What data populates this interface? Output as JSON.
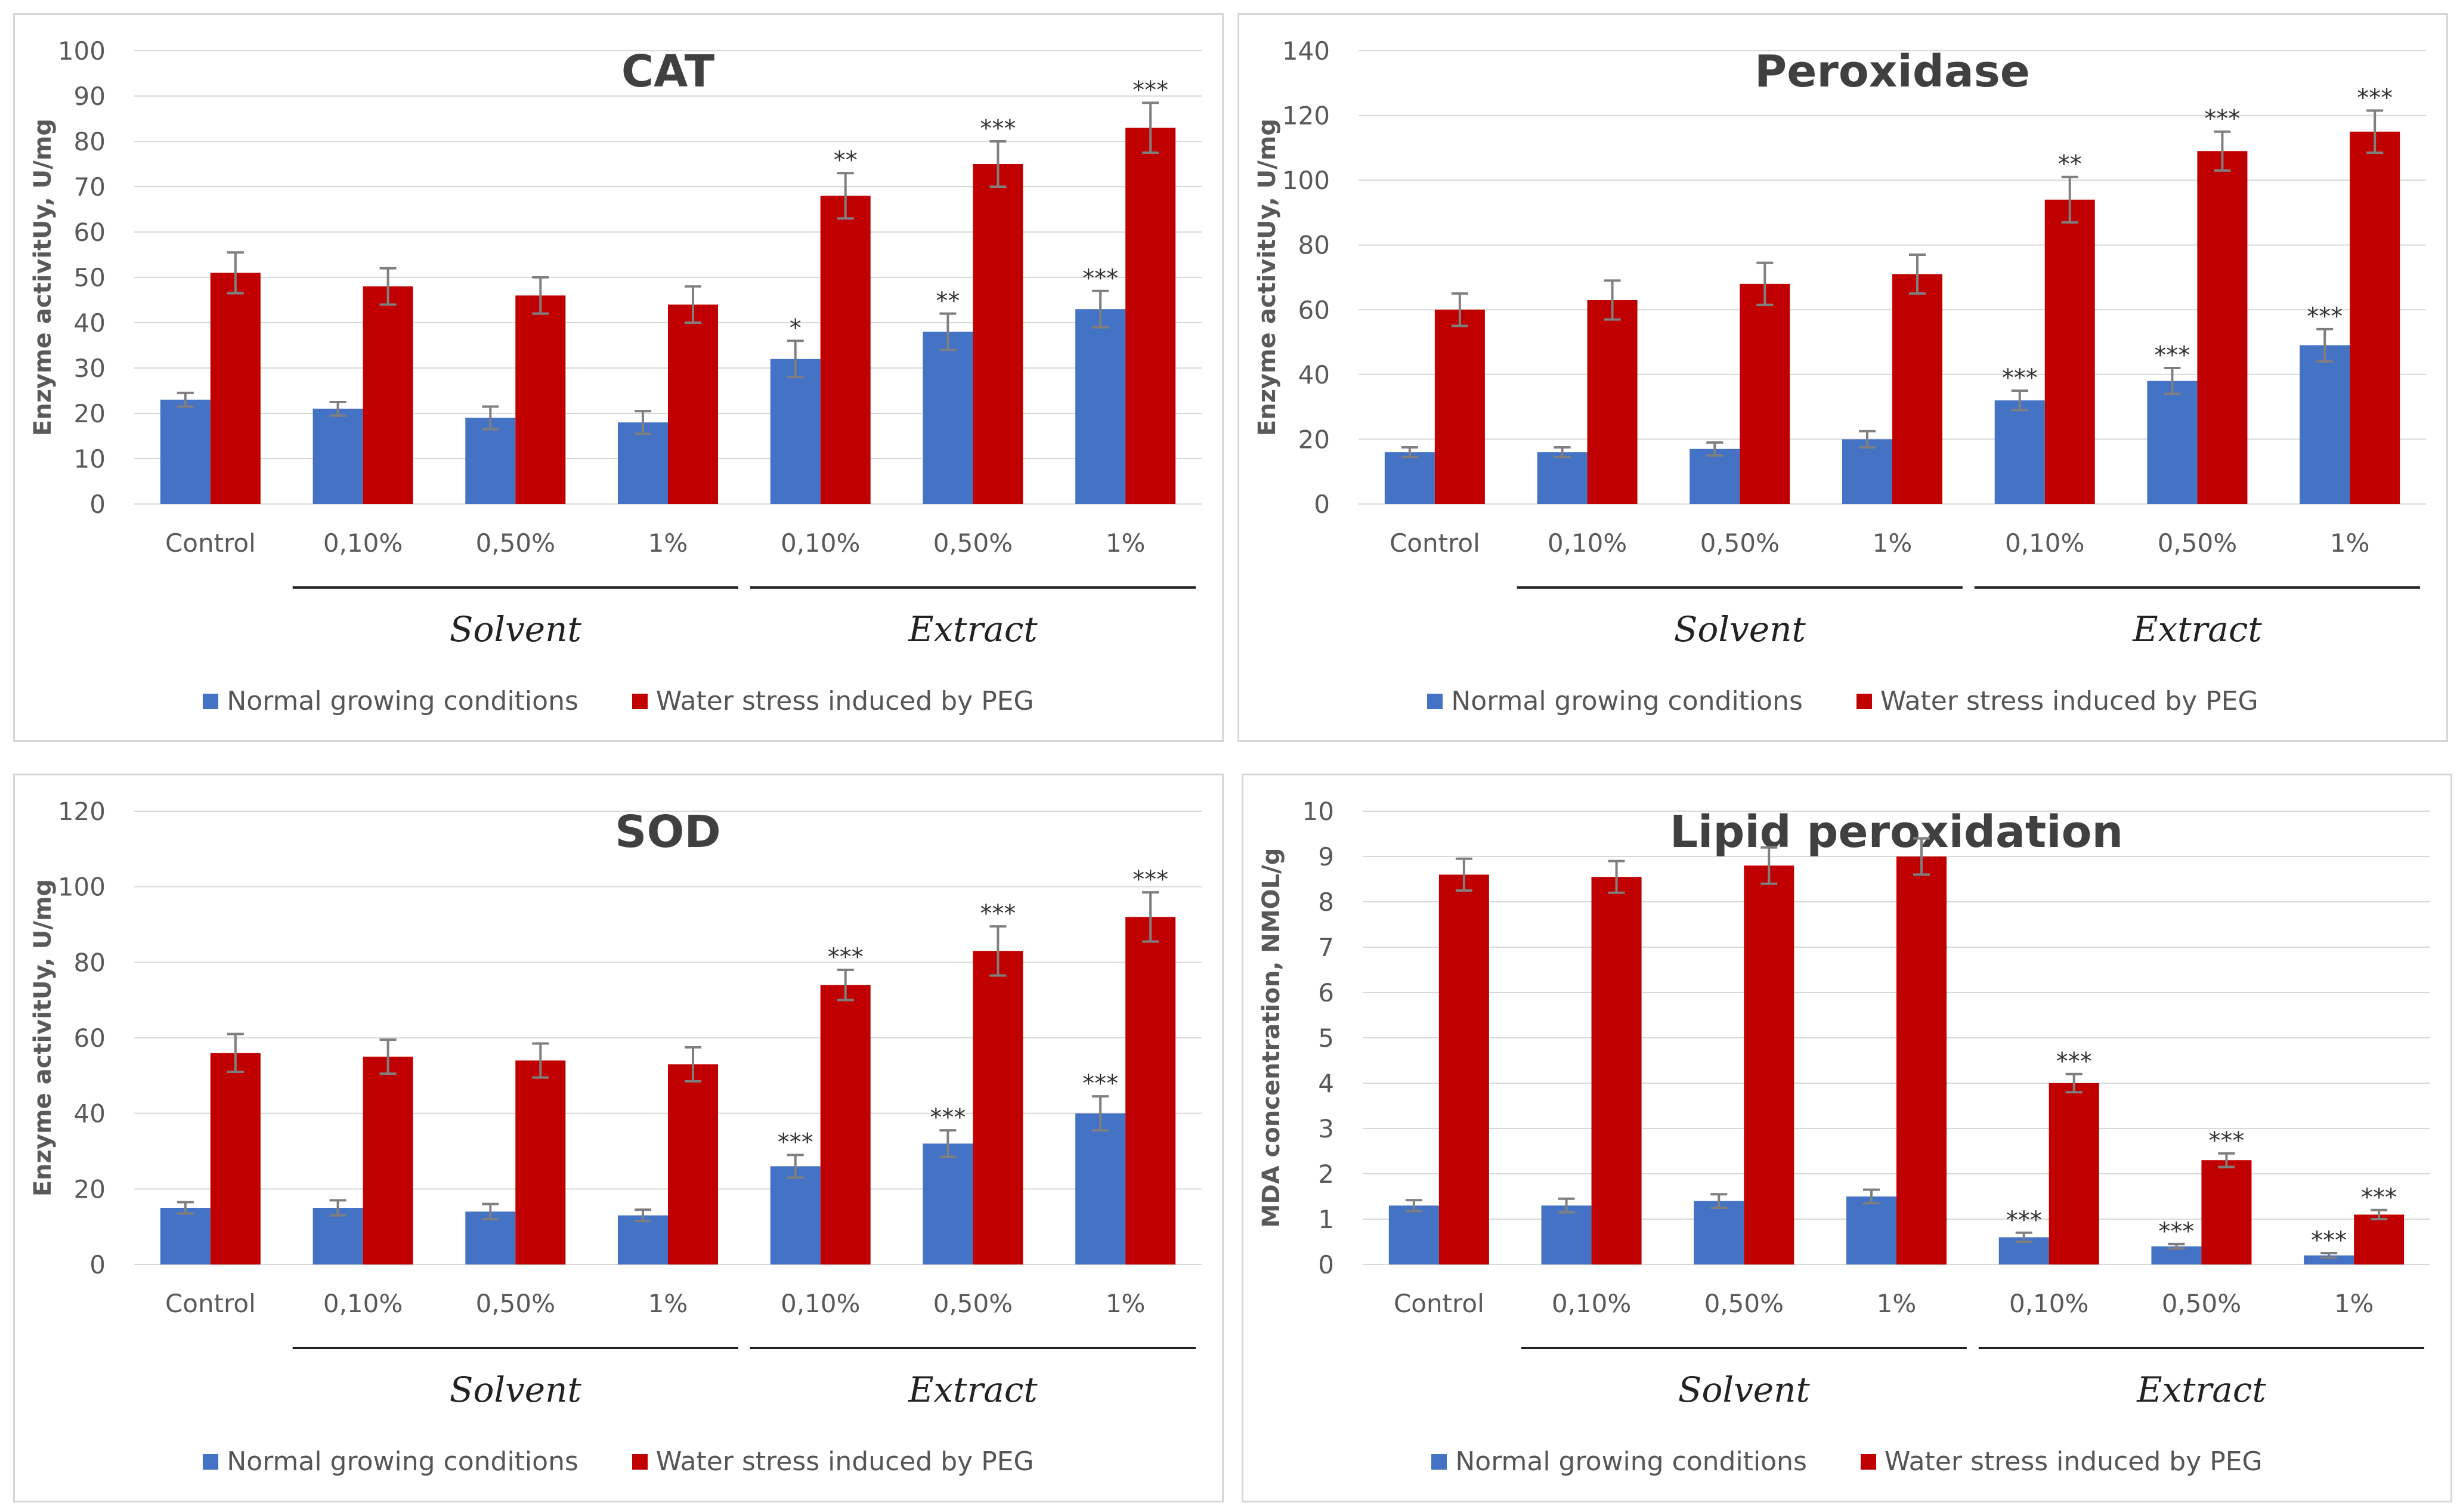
{
  "legend": {
    "normal": "Normal growing conditions",
    "stress": "Water stress induced by PEG"
  },
  "groups": {
    "solvent": "Solvent",
    "extract": "Extract"
  },
  "colors": {
    "normal": "#4472c4",
    "stress": "#c00000",
    "grid": "#d9d9d9",
    "text": "#595959",
    "title": "#404040"
  },
  "chart_data": [
    {
      "type": "bar",
      "title": "CAT",
      "ylabel": "Enzyme activitUy, U/mg",
      "ylim": [
        0,
        100
      ],
      "yticks": [
        "0",
        "10",
        "20",
        "30",
        "40",
        "50",
        "60",
        "70",
        "80",
        "90",
        "100"
      ],
      "categories": [
        "Control",
        "0,10%",
        "0,50%",
        "1%",
        "0,10%",
        "0,50%",
        "1%"
      ],
      "series": [
        {
          "name": "Normal growing conditions",
          "values": [
            23,
            21,
            19,
            18,
            32,
            38,
            43
          ],
          "errors": [
            1.5,
            1.5,
            2.5,
            2.5,
            4,
            4,
            4
          ],
          "sig": [
            "",
            "",
            "",
            "",
            "*",
            "**",
            "***"
          ]
        },
        {
          "name": "Water stress induced by PEG",
          "values": [
            51,
            48,
            46,
            44,
            68,
            75,
            83
          ],
          "errors": [
            4.5,
            4,
            4,
            4,
            5,
            5,
            5.5
          ],
          "sig": [
            "",
            "",
            "",
            "",
            "**",
            "***",
            "***"
          ]
        }
      ]
    },
    {
      "type": "bar",
      "title": "Peroxidase",
      "ylabel": "Enzyme activitUy, U/mg",
      "ylim": [
        0,
        140
      ],
      "yticks": [
        "0",
        "20",
        "40",
        "60",
        "80",
        "100",
        "120",
        "140"
      ],
      "categories": [
        "Control",
        "0,10%",
        "0,50%",
        "1%",
        "0,10%",
        "0,50%",
        "1%"
      ],
      "series": [
        {
          "name": "Normal growing conditions",
          "values": [
            16,
            16,
            17,
            20,
            32,
            38,
            49
          ],
          "errors": [
            1.5,
            1.5,
            2,
            2.5,
            3,
            4,
            5
          ],
          "sig": [
            "",
            "",
            "",
            "",
            "***",
            "***",
            "***"
          ]
        },
        {
          "name": "Water stress induced by PEG",
          "values": [
            60,
            63,
            68,
            71,
            94,
            109,
            115
          ],
          "errors": [
            5,
            6,
            6.5,
            6,
            7,
            6,
            6.5
          ],
          "sig": [
            "",
            "",
            "",
            "",
            "**",
            "***",
            "***"
          ]
        }
      ]
    },
    {
      "type": "bar",
      "title": "SOD",
      "ylabel": "Enzyme activitUy, U/mg",
      "ylim": [
        0,
        120
      ],
      "yticks": [
        "0",
        "20",
        "40",
        "60",
        "80",
        "100",
        "120"
      ],
      "categories": [
        "Control",
        "0,10%",
        "0,50%",
        "1%",
        "0,10%",
        "0,50%",
        "1%"
      ],
      "series": [
        {
          "name": "Normal growing conditions",
          "values": [
            15,
            15,
            14,
            13,
            26,
            32,
            40
          ],
          "errors": [
            1.5,
            2,
            2,
            1.5,
            3,
            3.5,
            4.5
          ],
          "sig": [
            "",
            "",
            "",
            "",
            "***",
            "***",
            "***"
          ]
        },
        {
          "name": "Water stress induced by PEG",
          "values": [
            56,
            55,
            54,
            53,
            74,
            83,
            92
          ],
          "errors": [
            5,
            4.5,
            4.5,
            4.5,
            4,
            6.5,
            6.5
          ],
          "sig": [
            "",
            "",
            "",
            "",
            "***",
            "***",
            "***"
          ]
        }
      ]
    },
    {
      "type": "bar",
      "title": "Lipid peroxidation",
      "ylabel": "MDA concentration, NMOL/g",
      "ylim": [
        0,
        10
      ],
      "yticks": [
        "0",
        "1",
        "2",
        "3",
        "4",
        "5",
        "6",
        "7",
        "8",
        "9",
        "10"
      ],
      "categories": [
        "Control",
        "0,10%",
        "0,50%",
        "1%",
        "0,10%",
        "0,50%",
        "1%"
      ],
      "series": [
        {
          "name": "Normal growing conditions",
          "values": [
            1.3,
            1.3,
            1.4,
            1.5,
            0.6,
            0.4,
            0.2
          ],
          "errors": [
            0.12,
            0.15,
            0.15,
            0.15,
            0.1,
            0.05,
            0.05
          ],
          "sig": [
            "",
            "",
            "",
            "",
            "***",
            "***",
            "***"
          ]
        },
        {
          "name": "Water stress induced by PEG",
          "values": [
            8.6,
            8.55,
            8.8,
            9.0,
            4.0,
            2.3,
            1.1
          ],
          "errors": [
            0.35,
            0.35,
            0.4,
            0.4,
            0.2,
            0.15,
            0.1
          ],
          "sig": [
            "",
            "",
            "",
            "",
            "***",
            "***",
            "***"
          ]
        }
      ]
    }
  ]
}
